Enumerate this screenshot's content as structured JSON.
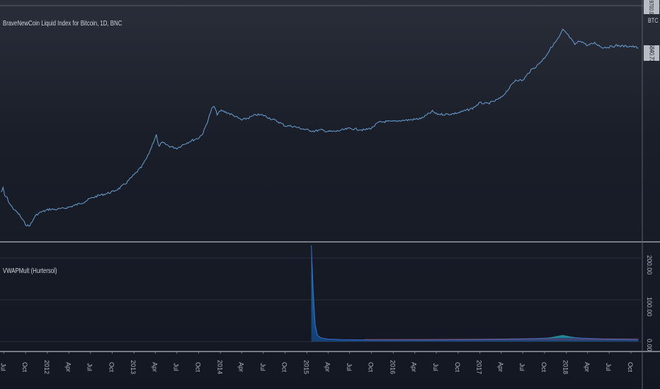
{
  "main_pane": {
    "title": "BraveNewCoin Liquid Index for Bitcoin, 1D, BNC",
    "currency": "BTC",
    "last_price_label": "5840.73",
    "top_scale_label": "19700.00"
  },
  "indicator_pane": {
    "title": "VWAPMult (Hurtersol)",
    "y_ticks": [
      "200.00",
      "100.00",
      "0.00"
    ]
  },
  "x_axis": {
    "tick_labels": [
      "Jul",
      "Oct",
      "2012",
      "Apr",
      "Jul",
      "Oct",
      "2013",
      "Apr",
      "Jul",
      "Oct",
      "2014",
      "Apr",
      "Jul",
      "Oct",
      "2015",
      "Apr",
      "Jul",
      "Oct",
      "2016",
      "Apr",
      "Jul",
      "Oct",
      "2017",
      "Apr",
      "Jul",
      "Oct",
      "2018",
      "Apr",
      "Jul",
      "Oct"
    ]
  },
  "colors": {
    "background": "#131722",
    "price_line": "#6a9fd4",
    "indicator_line": "#1e88e5",
    "indicator_fill": "#29a0e0",
    "indicator_spike": "#3a6fd0",
    "accent_green": "#26a69a",
    "accent_red": "#c2566a",
    "separator": "#5d606b",
    "grid": "#2a2e39"
  },
  "chart_data": [
    {
      "type": "line",
      "name": "price",
      "x_range": [
        "2011-07",
        "2018-11"
      ],
      "points": [
        [
          "2011-06-20",
          32
        ],
        [
          "2011-06-28",
          33
        ],
        [
          "2011-07-05",
          31
        ],
        [
          "2011-07-15",
          30.5
        ],
        [
          "2011-07-25",
          29
        ],
        [
          "2011-08-05",
          28
        ],
        [
          "2011-08-20",
          27
        ],
        [
          "2011-09-05",
          26
        ],
        [
          "2011-09-20",
          24.5
        ],
        [
          "2011-10-01",
          23.5
        ],
        [
          "2011-10-15",
          23
        ],
        [
          "2011-10-28",
          24
        ],
        [
          "2011-11-08",
          25.5
        ],
        [
          "2011-11-20",
          26.2
        ],
        [
          "2011-12-01",
          26.6
        ],
        [
          "2011-12-20",
          27
        ],
        [
          "2012-01-10",
          27.5
        ],
        [
          "2012-02-01",
          27.4
        ],
        [
          "2012-03-01",
          27.6
        ],
        [
          "2012-04-01",
          28
        ],
        [
          "2012-05-01",
          28.6
        ],
        [
          "2012-06-01",
          29.3
        ],
        [
          "2012-07-01",
          30.3
        ],
        [
          "2012-08-01",
          31
        ],
        [
          "2012-09-01",
          31.5
        ],
        [
          "2012-10-01",
          32
        ],
        [
          "2012-11-01",
          33
        ],
        [
          "2012-12-01",
          34.5
        ],
        [
          "2013-01-01",
          36.5
        ],
        [
          "2013-02-01",
          38.5
        ],
        [
          "2013-03-01",
          41.5
        ],
        [
          "2013-03-20",
          44.5
        ],
        [
          "2013-04-05",
          47
        ],
        [
          "2013-04-15",
          44
        ],
        [
          "2013-05-01",
          45
        ],
        [
          "2013-06-01",
          44
        ],
        [
          "2013-07-01",
          43.5
        ],
        [
          "2013-08-01",
          44.6
        ],
        [
          "2013-09-01",
          45.5
        ],
        [
          "2013-10-01",
          46.2
        ],
        [
          "2013-10-20",
          47.5
        ],
        [
          "2013-11-10",
          51
        ],
        [
          "2013-11-25",
          53.8
        ],
        [
          "2013-12-05",
          54.5
        ],
        [
          "2013-12-18",
          52.5
        ],
        [
          "2014-01-05",
          53.4
        ],
        [
          "2014-02-01",
          52.8
        ],
        [
          "2014-03-01",
          52
        ],
        [
          "2014-04-01",
          50.9
        ],
        [
          "2014-05-01",
          51.5
        ],
        [
          "2014-06-01",
          52.3
        ],
        [
          "2014-07-01",
          52.2
        ],
        [
          "2014-08-01",
          51.3
        ],
        [
          "2014-09-01",
          50.5
        ],
        [
          "2014-10-01",
          49.4
        ],
        [
          "2014-11-01",
          49.3
        ],
        [
          "2014-12-01",
          48.8
        ],
        [
          "2015-01-01",
          48.3
        ],
        [
          "2015-02-01",
          48
        ],
        [
          "2015-03-01",
          48.3
        ],
        [
          "2015-04-01",
          47.9
        ],
        [
          "2015-05-01",
          47.9
        ],
        [
          "2015-06-01",
          48.3
        ],
        [
          "2015-07-01",
          48.7
        ],
        [
          "2015-08-01",
          48.5
        ],
        [
          "2015-09-01",
          48.3
        ],
        [
          "2015-10-01",
          48.8
        ],
        [
          "2015-11-01",
          50.3
        ],
        [
          "2015-12-01",
          50.5
        ],
        [
          "2016-01-01",
          50.5
        ],
        [
          "2016-02-01",
          50.8
        ],
        [
          "2016-03-01",
          50.9
        ],
        [
          "2016-04-01",
          51.1
        ],
        [
          "2016-05-01",
          51.4
        ],
        [
          "2016-06-15",
          53.2
        ],
        [
          "2016-07-01",
          52.5
        ],
        [
          "2016-08-01",
          52.4
        ],
        [
          "2016-09-01",
          52.5
        ],
        [
          "2016-10-01",
          52.8
        ],
        [
          "2016-11-01",
          53.4
        ],
        [
          "2016-12-01",
          54
        ],
        [
          "2017-01-01",
          55.4
        ],
        [
          "2017-02-01",
          55.2
        ],
        [
          "2017-03-01",
          55.8
        ],
        [
          "2017-04-01",
          56.8
        ],
        [
          "2017-05-01",
          59
        ],
        [
          "2017-06-01",
          61.5
        ],
        [
          "2017-07-01",
          61.3
        ],
        [
          "2017-08-01",
          63.8
        ],
        [
          "2017-09-01",
          65.3
        ],
        [
          "2017-10-01",
          67.3
        ],
        [
          "2017-11-01",
          70.2
        ],
        [
          "2017-12-01",
          72.6
        ],
        [
          "2017-12-17",
          74.6
        ],
        [
          "2018-01-01",
          73.8
        ],
        [
          "2018-02-06",
          70.8
        ],
        [
          "2018-03-01",
          71.8
        ],
        [
          "2018-04-01",
          70.5
        ],
        [
          "2018-05-01",
          71.2
        ],
        [
          "2018-06-01",
          70
        ],
        [
          "2018-07-01",
          70.1
        ],
        [
          "2018-08-01",
          70.5
        ],
        [
          "2018-09-01",
          70.3
        ],
        [
          "2018-10-01",
          70.3
        ],
        [
          "2018-11-01",
          69.9
        ]
      ]
    },
    {
      "type": "area",
      "name": "VWAPMult (Hurtersol)",
      "y_range": [
        0,
        230
      ],
      "points": [
        [
          "2015-01-20",
          230
        ],
        [
          "2015-01-28",
          120
        ],
        [
          "2015-02-05",
          40
        ],
        [
          "2015-02-15",
          15
        ],
        [
          "2015-03-01",
          9
        ],
        [
          "2015-04-01",
          6
        ],
        [
          "2015-06-01",
          4.5
        ],
        [
          "2015-08-01",
          4.2
        ],
        [
          "2015-10-01",
          4
        ],
        [
          "2016-01-01",
          4
        ],
        [
          "2016-06-01",
          4.3
        ],
        [
          "2017-01-01",
          5
        ],
        [
          "2017-06-01",
          6.2
        ],
        [
          "2017-09-01",
          7.5
        ],
        [
          "2017-11-01",
          9
        ],
        [
          "2017-12-17",
          14
        ],
        [
          "2018-01-15",
          11
        ],
        [
          "2018-03-01",
          8.5
        ],
        [
          "2018-06-01",
          6.5
        ],
        [
          "2018-09-01",
          5.5
        ],
        [
          "2018-11-01",
          5
        ]
      ]
    }
  ]
}
